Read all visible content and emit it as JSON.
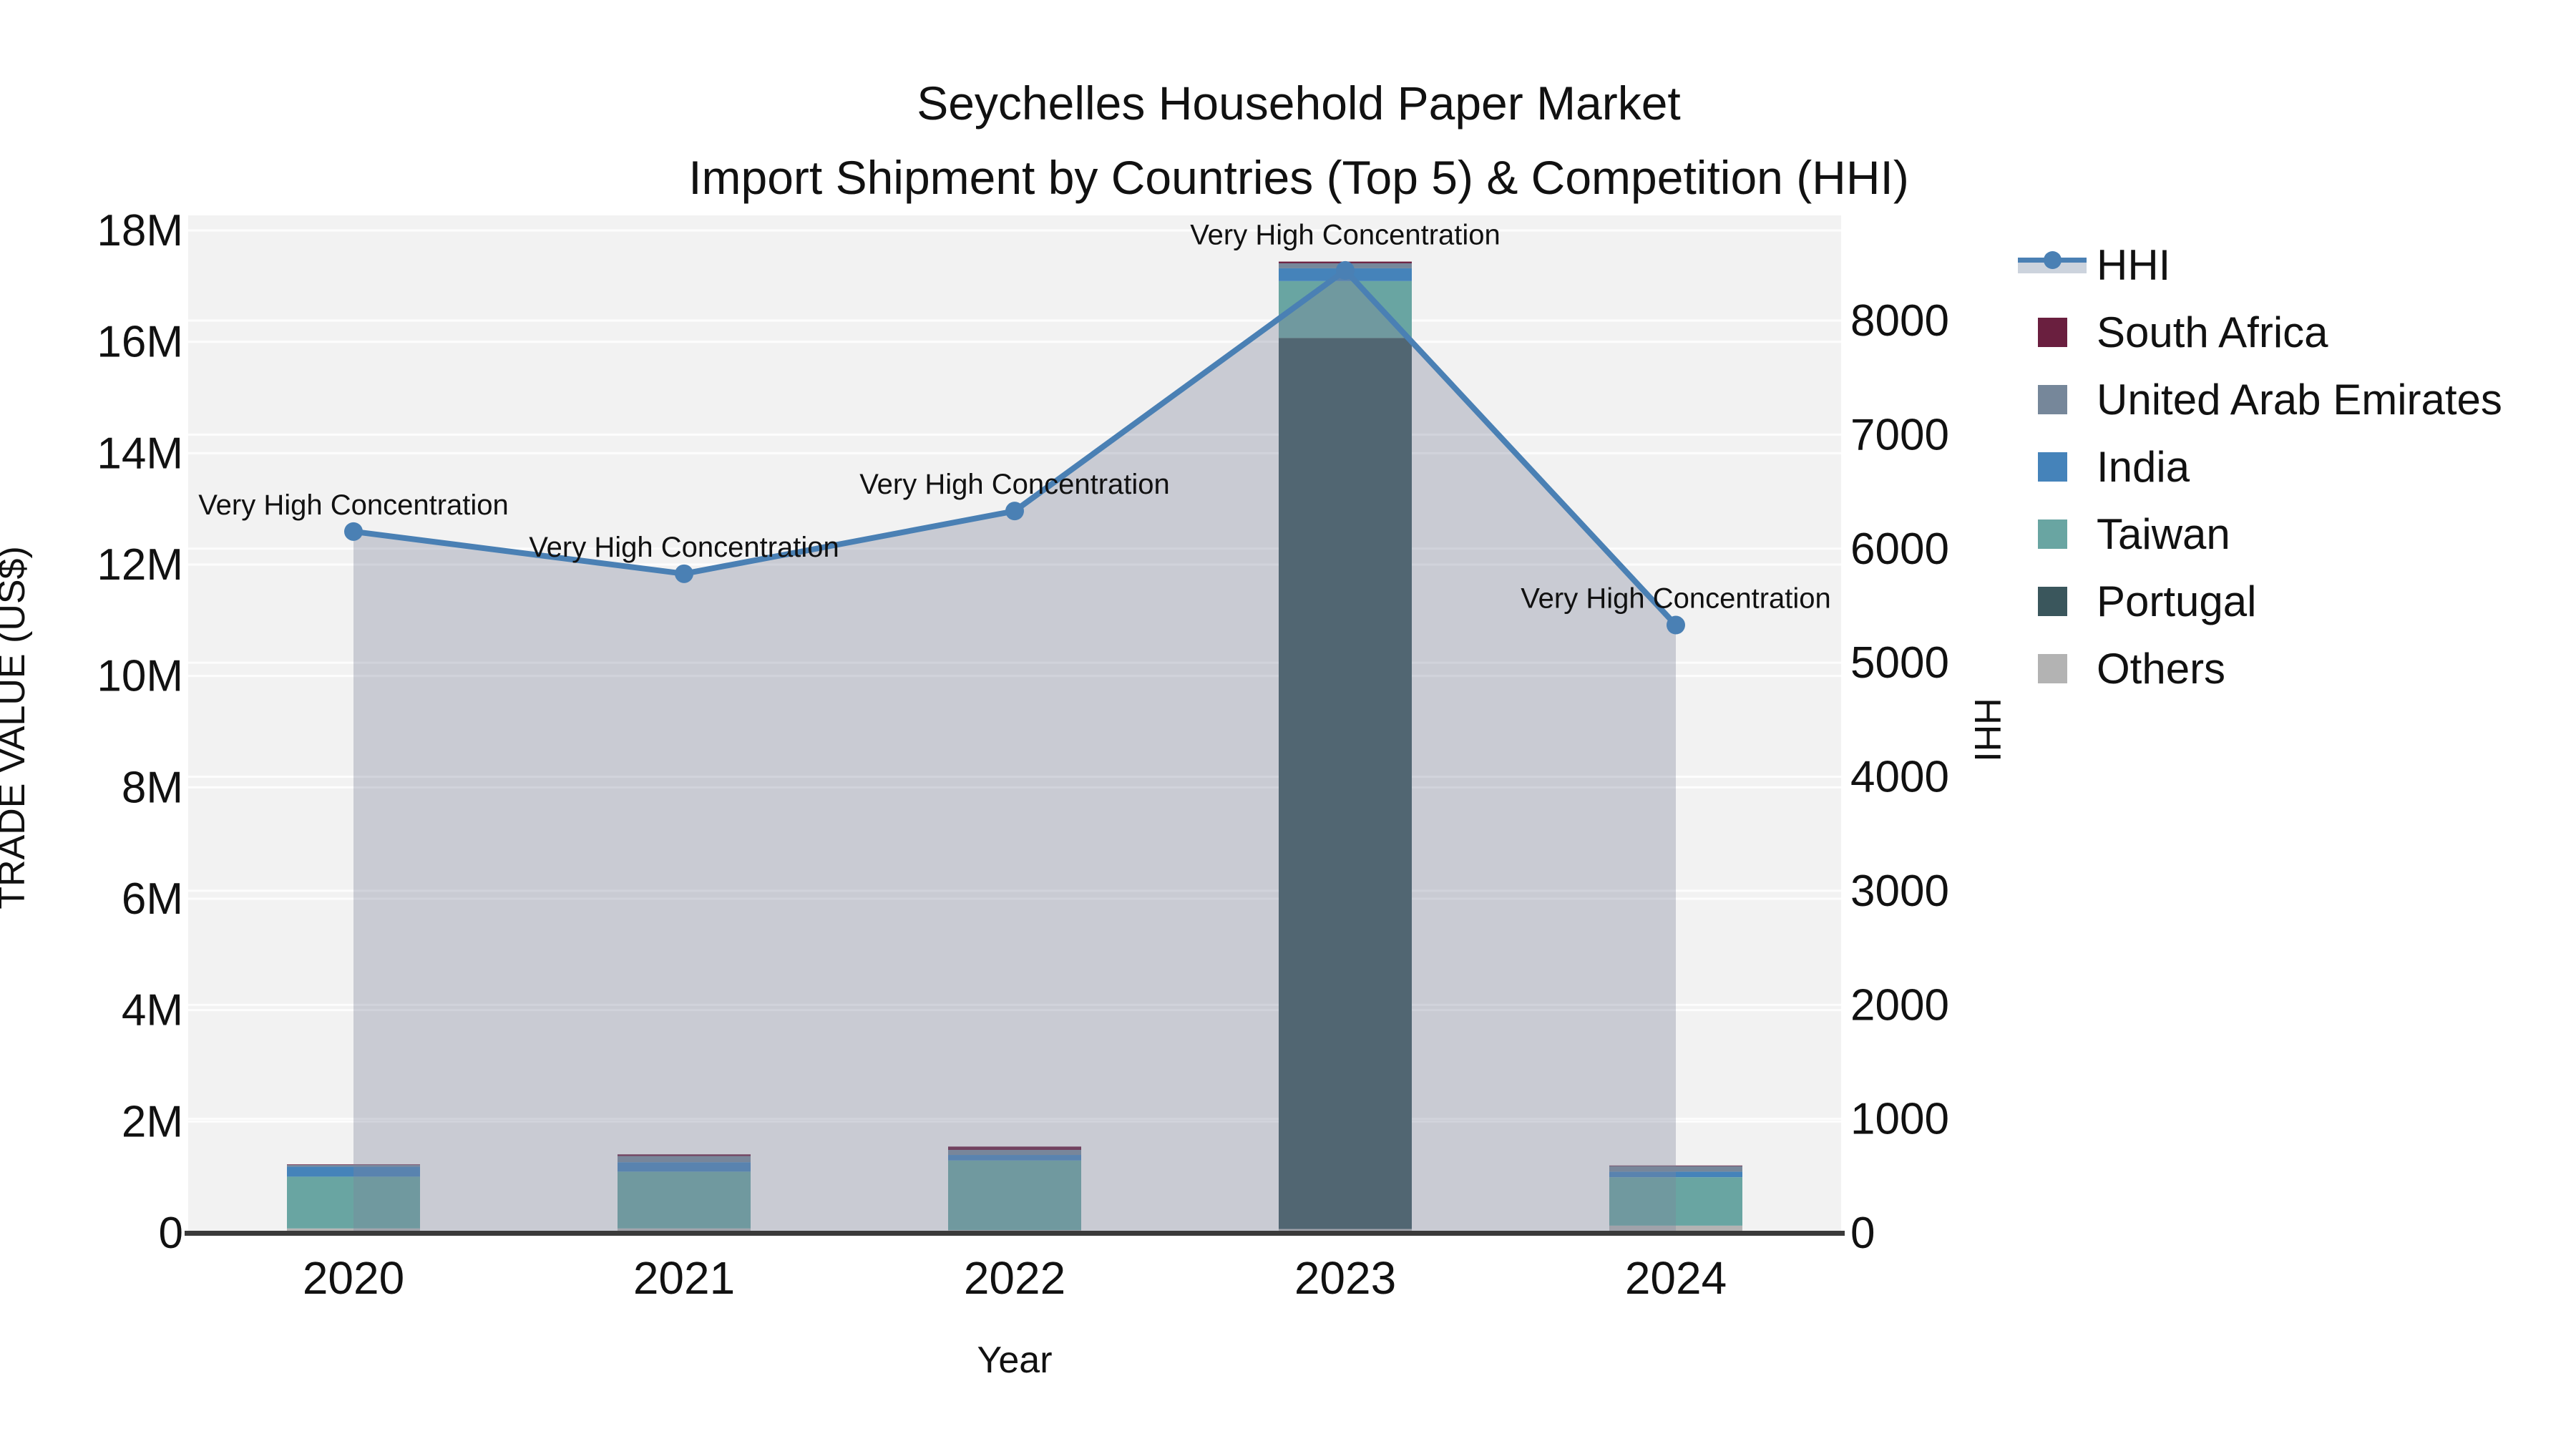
{
  "title": {
    "line1": "Seychelles Household Paper Market",
    "line2": "Import Shipment by Countries (Top 5) & Competition (HHI)"
  },
  "colors": {
    "hhi_line": "#4a80b4",
    "hhi_fill": "rgba(125,133,156,0.35)",
    "legend_band": "#ccd3dd",
    "plot_bg": "#f2f2f2",
    "gridline": "rgba(255,255,255,0.85)",
    "axis_line": "#3a3a3a",
    "text": "#111111",
    "series": {
      "South Africa": "#6a1f3f",
      "United Arab Emirates": "#76879a",
      "India": "#4583ba",
      "Taiwan": "#69a5a2",
      "Portugal": "#3a565c",
      "Others": "#b3b3b3"
    }
  },
  "chart_data": {
    "type": "bar+line",
    "title": "Seychelles Household Paper Market",
    "subtitle": "Import Shipment by Countries (Top 5) & Competition (HHI)",
    "categories": [
      "2020",
      "2021",
      "2022",
      "2023",
      "2024"
    ],
    "bar_unit": "M US$ (values in millions, stacked; series listed bottom-to-top)",
    "series": [
      {
        "name": "Others",
        "values_musd": [
          0.08,
          0.08,
          0.05,
          0.07,
          0.13
        ]
      },
      {
        "name": "Portugal",
        "values_musd": [
          0,
          0,
          0,
          16.0,
          0
        ]
      },
      {
        "name": "Taiwan",
        "values_musd": [
          0.93,
          1.02,
          1.25,
          1.02,
          0.87
        ]
      },
      {
        "name": "India",
        "values_musd": [
          0.18,
          0.17,
          0.1,
          0.23,
          0.1
        ]
      },
      {
        "name": "United Arab Emirates",
        "values_musd": [
          0.03,
          0.11,
          0.09,
          0.09,
          0.1
        ]
      },
      {
        "name": "South Africa",
        "values_musd": [
          0.01,
          0.03,
          0.06,
          0.03,
          0.01
        ]
      }
    ],
    "line_series": {
      "name": "HHI",
      "axis": "right",
      "values": [
        6150,
        5780,
        6330,
        8440,
        5330
      ]
    },
    "annotations": [
      "Very High Concentration",
      "Very High Concentration",
      "Very High Concentration",
      "Very High Concentration",
      "Very High Concentration"
    ],
    "xlabel": "Year",
    "ylabel_left": "TRADE VALUE (US$)",
    "ylabel_right": "HHI",
    "yticks_left": [
      "0",
      "2M",
      "4M",
      "6M",
      "8M",
      "10M",
      "12M",
      "14M",
      "16M",
      "18M"
    ],
    "yticks_right": [
      "0",
      "1000",
      "2000",
      "3000",
      "4000",
      "5000",
      "6000",
      "7000",
      "8000"
    ],
    "ylim_left_musd": [
      0,
      18.3
    ],
    "ylim_right": [
      0,
      8930
    ],
    "grid": "on",
    "legend_position": "right",
    "legend": [
      {
        "label": "HHI",
        "type": "line"
      },
      {
        "label": "South Africa",
        "type": "swatch"
      },
      {
        "label": "United Arab Emirates",
        "type": "swatch"
      },
      {
        "label": "India",
        "type": "swatch"
      },
      {
        "label": "Taiwan",
        "type": "swatch"
      },
      {
        "label": "Portugal",
        "type": "swatch"
      },
      {
        "label": "Others",
        "type": "swatch"
      }
    ]
  }
}
